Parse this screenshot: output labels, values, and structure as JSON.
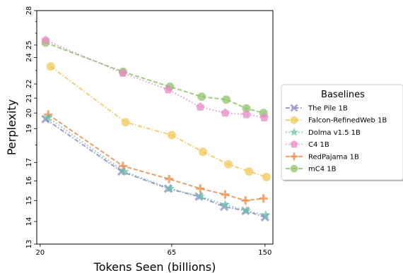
{
  "chart_data": {
    "type": "line",
    "xlabel": "Tokens Seen (billions)",
    "ylabel": "Perplexity",
    "x_scale": "log",
    "y_scale": "log",
    "xlim": [
      19.4,
      161
    ],
    "ylim": [
      13,
      28
    ],
    "x_ticks": [
      20,
      65,
      150
    ],
    "y_ticks": [
      13,
      14,
      15,
      16,
      17,
      18,
      19,
      20,
      21,
      22,
      23,
      24,
      25,
      26,
      27,
      28
    ],
    "y_tick_labels": [
      "13",
      "14",
      "15",
      "16",
      "17",
      "19",
      "20",
      "21",
      "22",
      "24",
      "25",
      "28"
    ],
    "legend_title": "Baselines",
    "legend_position": "right, outside plot",
    "series": [
      {
        "name": "The Pile 1B",
        "color": "#8c89c5",
        "marker": "x",
        "linestyle": "dashdot",
        "x": [
          21,
          41.5,
          63,
          83,
          104,
          126,
          150
        ],
        "y": [
          19.6,
          16.5,
          15.6,
          15.2,
          14.7,
          14.5,
          14.2
        ]
      },
      {
        "name": "Falcon-RefinedWeb 1B",
        "color": "#f0c85a",
        "marker": "circle",
        "linestyle": "dashdot",
        "x": [
          22,
          43,
          65,
          86,
          108,
          130,
          152
        ],
        "y": [
          23.3,
          19.4,
          18.6,
          17.6,
          16.9,
          16.5,
          16.2
        ]
      },
      {
        "name": "Dolma v1.5 1B",
        "color": "#66c2a5",
        "marker": "star",
        "linestyle": "dotted",
        "x": [
          21.5,
          42.5,
          64,
          84,
          105,
          127,
          151
        ],
        "y": [
          19.7,
          16.5,
          15.6,
          15.2,
          14.8,
          14.5,
          14.3
        ]
      },
      {
        "name": "C4 1B",
        "color": "#e78ac3",
        "marker": "pentagon",
        "linestyle": "dotted",
        "x": [
          21,
          42,
          63,
          84,
          105,
          127,
          149
        ],
        "y": [
          25.4,
          22.8,
          21.6,
          20.4,
          20.0,
          19.9,
          19.7
        ]
      },
      {
        "name": "RedPajama 1B",
        "color": "#e98e4d",
        "marker": "plus",
        "linestyle": "dashed",
        "x": [
          21.5,
          42,
          63.5,
          84,
          105,
          126,
          148
        ],
        "y": [
          19.9,
          16.8,
          16.1,
          15.6,
          15.3,
          15.0,
          15.1
        ]
      },
      {
        "name": "mC4 1B",
        "color": "#8fc46a",
        "marker": "octagon",
        "linestyle": "dashed",
        "x": [
          21,
          42,
          64,
          85,
          106,
          127,
          148
        ],
        "y": [
          25.2,
          22.9,
          21.8,
          21.1,
          20.9,
          20.3,
          20.0
        ]
      }
    ]
  }
}
